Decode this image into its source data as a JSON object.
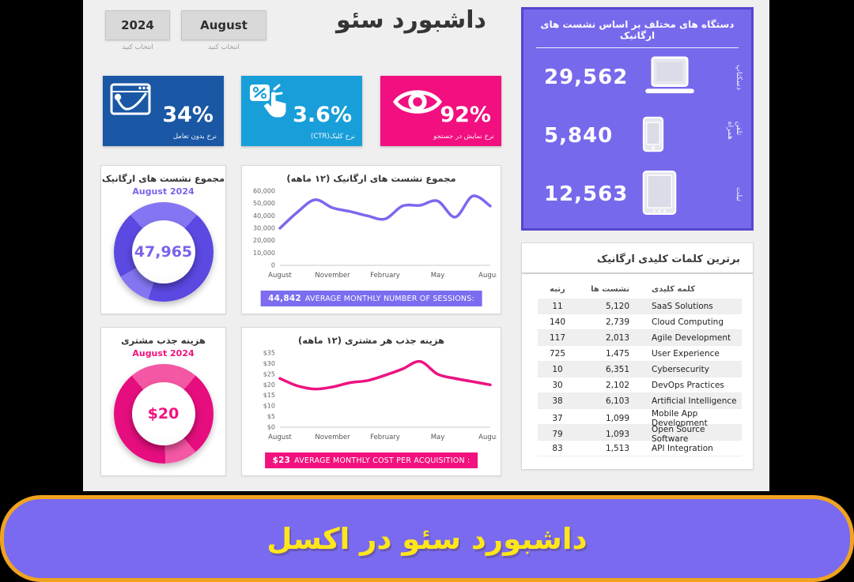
{
  "header": {
    "title": "داشبورد سئو"
  },
  "filters": {
    "year": {
      "value": "2024",
      "hint": "انتخاب کنید"
    },
    "month": {
      "value": "August",
      "hint": "انتخاب کنید"
    }
  },
  "kpis": [
    {
      "label": "نرخ بدون تعامل",
      "value": "34%",
      "bg": "#1a57a5",
      "icon": "bounce-rate-icon"
    },
    {
      "label": "نرخ کلیک(CTR)",
      "value": "3.6%",
      "bg": "#189fd9",
      "icon": "click-ctr-icon"
    },
    {
      "label": "نرخ نمایش در جستجو",
      "value": "92%",
      "bg": "#f20f7f",
      "icon": "eye-icon"
    }
  ],
  "devices": {
    "title": "دستگاه های مختلف بر اساس نشست های ارگانیک",
    "bg": "#7769eb",
    "border": "#5546cf",
    "rows": [
      {
        "label": "دسکتاپ",
        "value": "29,562",
        "icon": "laptop-icon"
      },
      {
        "label": "تلفن همراه",
        "value": "5,840",
        "icon": "smartphone-icon"
      },
      {
        "label": "تبلت",
        "value": "12,563",
        "icon": "tablet-icon"
      }
    ]
  },
  "keywords_table": {
    "title": "برترین کلمات کلیدی ارگانیک",
    "headers": {
      "keyword": "کلمه کلیدی",
      "sessions": "نشست ها",
      "rank": "رتبه"
    },
    "rows": [
      {
        "rank": "11",
        "sessions": "5,120",
        "keyword": "SaaS Solutions"
      },
      {
        "rank": "140",
        "sessions": "2,739",
        "keyword": "Cloud Computing"
      },
      {
        "rank": "117",
        "sessions": "2,013",
        "keyword": "Agile Development"
      },
      {
        "rank": "725",
        "sessions": "1,475",
        "keyword": "User Experience"
      },
      {
        "rank": "10",
        "sessions": "6,351",
        "keyword": "Cybersecurity"
      },
      {
        "rank": "30",
        "sessions": "2,102",
        "keyword": "DevOps Practices"
      },
      {
        "rank": "38",
        "sessions": "6,103",
        "keyword": "Artificial Intelligence"
      },
      {
        "rank": "37",
        "sessions": "1,099",
        "keyword": "Mobile App Development"
      },
      {
        "rank": "79",
        "sessions": "1,093",
        "keyword": "Open Source Software"
      },
      {
        "rank": "83",
        "sessions": "1,513",
        "keyword": "API Integration"
      }
    ]
  },
  "chart_data": [
    {
      "id": "sessions_line",
      "type": "line",
      "title": "مجموع نشست های ارگانیک (۱۲ ماهه)",
      "x": [
        "Aug",
        "Sep",
        "Oct",
        "Nov",
        "Dec",
        "Jan",
        "Feb",
        "Mar",
        "Apr",
        "May",
        "Jun",
        "Jul",
        "Aug"
      ],
      "x_axis_labels": [
        "August",
        "November",
        "February",
        "May",
        "August"
      ],
      "values": [
        30000,
        43000,
        53000,
        46500,
        43500,
        40000,
        37500,
        48000,
        48500,
        52000,
        39000,
        56000,
        48000
      ],
      "ylim": [
        0,
        60000
      ],
      "ytick_labels": [
        "0",
        "10,000",
        "20,000",
        "30,000",
        "40,000",
        "50,000",
        "60,000"
      ],
      "line_color": "#7b68ee",
      "footer_value": "44,842",
      "footer_label": "AVERAGE MONTHLY NUMBER OF SESSIONS:",
      "footer_bg": "#7b6cf0"
    },
    {
      "id": "cpa_line",
      "type": "line",
      "title": "هزینه جذب هر مشتری (۱۲ ماهه)",
      "x": [
        "Aug",
        "Sep",
        "Oct",
        "Nov",
        "Dec",
        "Jan",
        "Feb",
        "Mar",
        "Apr",
        "May",
        "Jun",
        "Jul",
        "Aug"
      ],
      "x_axis_labels": [
        "August",
        "November",
        "February",
        "May",
        "August"
      ],
      "values": [
        23,
        19.5,
        18,
        19,
        21,
        22,
        24.5,
        27.5,
        31,
        25,
        23,
        21.5,
        20
      ],
      "ylim": [
        0,
        35
      ],
      "ytick_labels": [
        "$0",
        "$5",
        "$10",
        "$15",
        "$20",
        "$25",
        "$30",
        "$35"
      ],
      "line_color": "#ec1380",
      "footer_value": "$23",
      "footer_label": "AVERAGE MONTHLY COST PER ACQUISITION :",
      "footer_bg": "#f2117e"
    },
    {
      "id": "sessions_donut",
      "type": "donut",
      "title": "مجموع نشست های ارگانیک",
      "subtitle": "August 2024",
      "value": "47,965",
      "ring_color": "#5b49e2",
      "ring_light": "#8476f2",
      "value_color": "#7b63ea"
    },
    {
      "id": "cpa_donut",
      "type": "donut",
      "title": "هزینه جذب مشتری",
      "subtitle": "August 2024",
      "value": "$20",
      "ring_color": "#e60e7e",
      "ring_light": "#f457a4",
      "value_color": "#f2117e"
    }
  ],
  "banner": {
    "label": "داشبورد سئو در اکسل",
    "bg": "#7a6af0",
    "border": "#f0a31f",
    "text_color": "#ffe619"
  }
}
